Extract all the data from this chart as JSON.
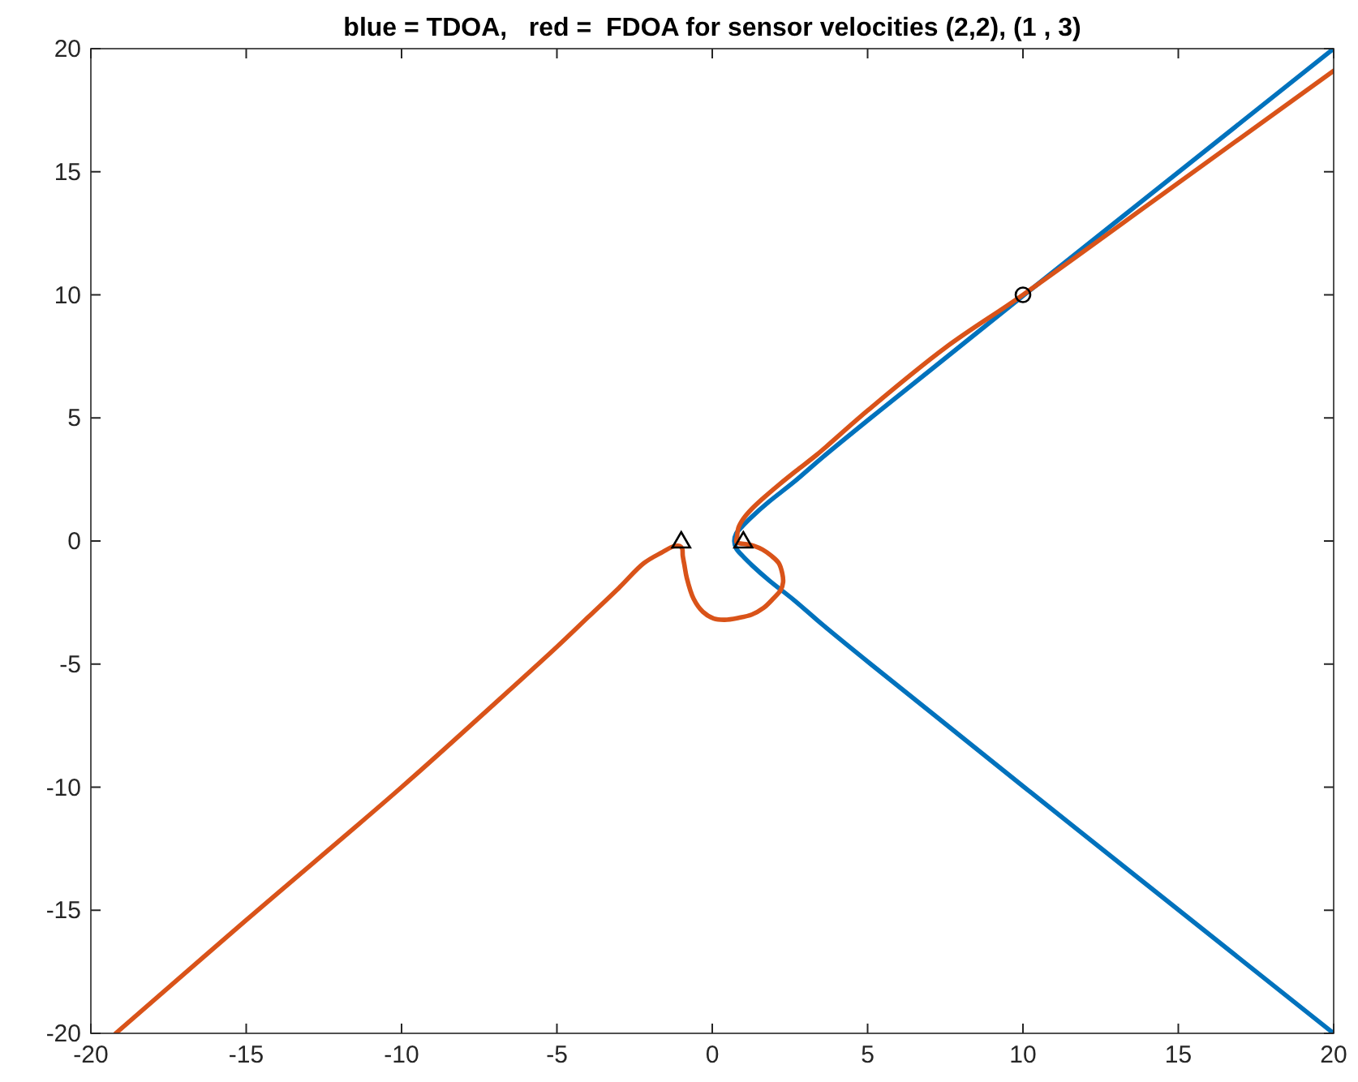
{
  "chart_data": {
    "type": "line",
    "title": "blue = TDOA,   red =  FDOA for sensor velocities (2,2), (1 , 3)",
    "xlim": [
      -20,
      20
    ],
    "ylim": [
      -20,
      20
    ],
    "xticks": [
      -20,
      -15,
      -10,
      -5,
      0,
      5,
      10,
      15,
      20
    ],
    "yticks": [
      -20,
      -15,
      -10,
      -5,
      0,
      5,
      10,
      15,
      20
    ],
    "grid": false,
    "series": [
      {
        "color": "#0072bd",
        "marker": "none",
        "x": [
          20,
          15.02,
          10.04,
          7.08,
          5.1,
          3.55,
          2.63,
          1.83,
          1.29,
          0.97,
          0.77,
          0.71,
          0.77,
          0.97,
          1.29,
          1.83,
          2.63,
          3.55,
          5.1,
          7.08,
          10.04,
          15.02,
          20
        ],
        "values": [
          -20,
          -15,
          -10,
          -7,
          -5,
          -3.4,
          -2.4,
          -1.6,
          -1,
          -0.6,
          -0.3,
          0,
          0.3,
          0.6,
          1,
          1.6,
          2.4,
          3.4,
          5,
          7,
          10,
          15,
          20
        ]
      },
      {
        "color": "#d95319",
        "marker": "none",
        "x": [
          -19.2,
          -15,
          -10,
          -7,
          -5,
          -4,
          -3,
          -2.2,
          -1.6,
          -1.25,
          -1.05,
          -0.97,
          -0.95,
          -0.9,
          -0.82,
          -0.6,
          -0.3,
          0.05,
          0.4,
          0.85,
          1.27,
          1.65,
          1.97,
          2.2,
          2.28,
          2.25,
          2.14,
          1.9,
          1.62,
          1.35,
          1.1,
          0.9,
          0.78,
          0.8,
          0.84,
          1.0,
          1.27,
          1.65,
          2.14,
          2.7,
          3.36,
          5,
          7.5,
          10,
          15,
          20
        ],
        "values": [
          -20,
          -15.4,
          -10,
          -6.6,
          -4.3,
          -3.1,
          -1.9,
          -0.9,
          -0.45,
          -0.22,
          -0.2,
          -0.3,
          -0.6,
          -0.95,
          -1.5,
          -2.35,
          -2.88,
          -3.15,
          -3.2,
          -3.12,
          -2.99,
          -2.72,
          -2.33,
          -2.0,
          -1.67,
          -1.3,
          -0.9,
          -0.6,
          -0.35,
          -0.2,
          -0.13,
          -0.1,
          -0.05,
          0.2,
          0.53,
          0.9,
          1.3,
          1.75,
          2.28,
          2.85,
          3.5,
          5.3,
          7.85,
          10,
          14.55,
          19.1
        ]
      },
      {
        "type": "scatter",
        "color": "#000000",
        "marker": "triangle",
        "x": [
          -1,
          1
        ],
        "values": [
          0,
          0
        ]
      },
      {
        "type": "scatter",
        "color": "#000000",
        "marker": "circle",
        "x": [
          10
        ],
        "values": [
          10
        ]
      }
    ]
  }
}
